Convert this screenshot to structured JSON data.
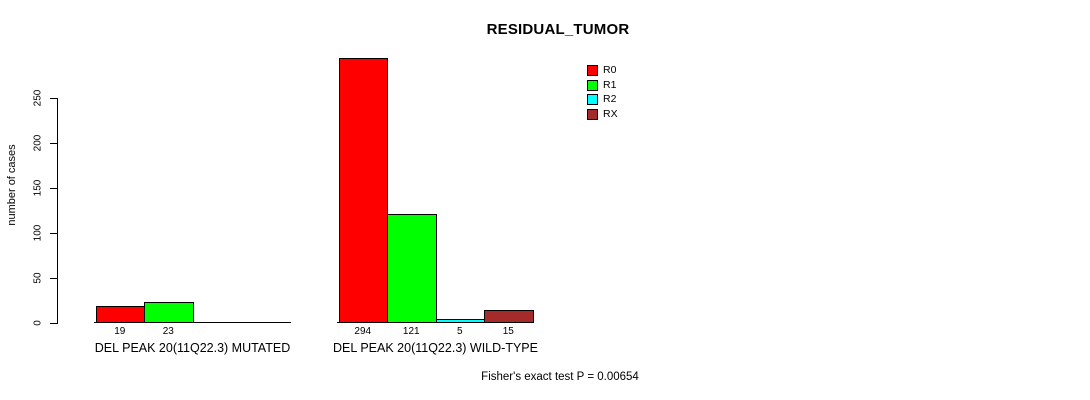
{
  "chart_data": {
    "type": "bar",
    "title": "RESIDUAL_TUMOR",
    "ylabel": "number of cases",
    "xlabel": "",
    "ylim": [
      0,
      250
    ],
    "yticks": [
      0,
      50,
      100,
      150,
      200,
      250
    ],
    "grid": false,
    "legend_position": "top-right",
    "bar_value_labels_shown": true,
    "categories": [
      "DEL PEAK 20(11Q22.3) MUTATED",
      "DEL PEAK 20(11Q22.3) WILD-TYPE"
    ],
    "series": [
      {
        "name": "R0",
        "color": "#ff0000",
        "values": [
          19,
          294
        ]
      },
      {
        "name": "R1",
        "color": "#00ff00",
        "values": [
          23,
          121
        ]
      },
      {
        "name": "R2",
        "color": "#00ffff",
        "values": [
          0,
          5
        ]
      },
      {
        "name": "RX",
        "color": "#a52a2a",
        "values": [
          0,
          15
        ]
      }
    ],
    "annotation": "Fisher's exact test P = 0.00654"
  },
  "colors": {
    "axis": "#000000",
    "background": "#ffffff",
    "r0": "#ff0000",
    "r1": "#00ff00",
    "r2": "#00ffff",
    "rx": "#a52a2a"
  }
}
